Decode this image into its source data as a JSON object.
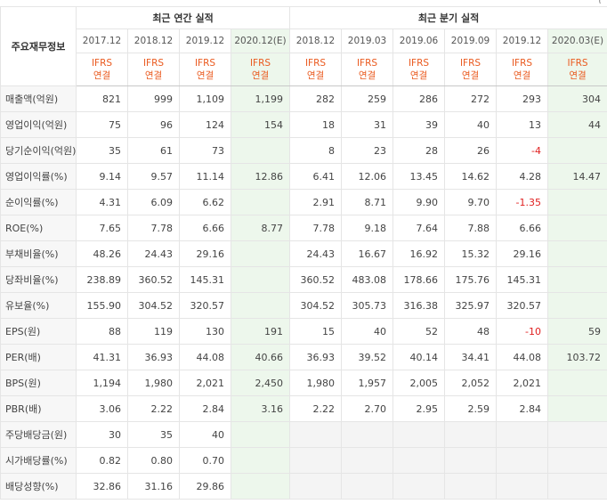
{
  "top_fragment": "( ",
  "header": {
    "row_label": "주요재무정보",
    "annual_title": "최근 연간 실적",
    "quarter_title": "최근 분기 실적",
    "annual_periods": [
      {
        "period": "2017.12",
        "basis": [
          "IFRS",
          "연결"
        ]
      },
      {
        "period": "2018.12",
        "basis": [
          "IFRS",
          "연결"
        ]
      },
      {
        "period": "2019.12",
        "basis": [
          "IFRS",
          "연결"
        ]
      },
      {
        "period": "2020.12(E)",
        "basis": [
          "IFRS",
          "연결"
        ]
      }
    ],
    "quarter_periods": [
      {
        "period": "2018.12",
        "basis": [
          "IFRS",
          "연결"
        ]
      },
      {
        "period": "2019.03",
        "basis": [
          "IFRS",
          "연결"
        ]
      },
      {
        "period": "2019.06",
        "basis": [
          "IFRS",
          "연결"
        ]
      },
      {
        "period": "2019.09",
        "basis": [
          "IFRS",
          "연결"
        ]
      },
      {
        "period": "2019.12",
        "basis": [
          "IFRS",
          "연결"
        ]
      },
      {
        "period": "2020.03(E)",
        "basis": [
          "IFRS",
          "연결"
        ]
      }
    ]
  },
  "rows": [
    {
      "label": "매출액(억원)",
      "annual": [
        "821",
        "999",
        "1,109",
        "1,199"
      ],
      "quarter": [
        "282",
        "259",
        "286",
        "272",
        "293",
        "304"
      ],
      "group_start": true
    },
    {
      "label": "영업이익(억원)",
      "annual": [
        "75",
        "96",
        "124",
        "154"
      ],
      "quarter": [
        "18",
        "31",
        "39",
        "40",
        "13",
        "44"
      ]
    },
    {
      "label": "당기순이익(억원)",
      "annual": [
        "35",
        "61",
        "73",
        ""
      ],
      "quarter": [
        "8",
        "23",
        "28",
        "26",
        "-4",
        ""
      ]
    },
    {
      "label": "영업이익률(%)",
      "annual": [
        "9.14",
        "9.57",
        "11.14",
        "12.86"
      ],
      "quarter": [
        "6.41",
        "12.06",
        "13.45",
        "14.62",
        "4.28",
        "14.47"
      ],
      "group_start": true
    },
    {
      "label": "순이익률(%)",
      "annual": [
        "4.31",
        "6.09",
        "6.62",
        ""
      ],
      "quarter": [
        "2.91",
        "8.71",
        "9.90",
        "9.70",
        "-1.35",
        ""
      ]
    },
    {
      "label": "ROE(%)",
      "annual": [
        "7.65",
        "7.78",
        "6.66",
        "8.77"
      ],
      "quarter": [
        "7.78",
        "9.18",
        "7.64",
        "7.88",
        "6.66",
        ""
      ]
    },
    {
      "label": "부채비율(%)",
      "annual": [
        "48.26",
        "24.43",
        "29.16",
        ""
      ],
      "quarter": [
        "24.43",
        "16.67",
        "16.92",
        "15.32",
        "29.16",
        ""
      ],
      "group_start": true
    },
    {
      "label": "당좌비율(%)",
      "annual": [
        "238.89",
        "360.52",
        "145.31",
        ""
      ],
      "quarter": [
        "360.52",
        "483.08",
        "178.66",
        "175.76",
        "145.31",
        ""
      ]
    },
    {
      "label": "유보율(%)",
      "annual": [
        "155.90",
        "304.52",
        "320.57",
        ""
      ],
      "quarter": [
        "304.52",
        "305.73",
        "316.38",
        "325.97",
        "320.57",
        ""
      ]
    },
    {
      "label": "EPS(원)",
      "annual": [
        "88",
        "119",
        "130",
        "191"
      ],
      "quarter": [
        "15",
        "40",
        "52",
        "48",
        "-10",
        "59"
      ],
      "group_start": true
    },
    {
      "label": "PER(배)",
      "annual": [
        "41.31",
        "36.93",
        "44.08",
        "40.66"
      ],
      "quarter": [
        "36.93",
        "39.52",
        "40.14",
        "34.41",
        "44.08",
        "103.72"
      ]
    },
    {
      "label": "BPS(원)",
      "annual": [
        "1,194",
        "1,980",
        "2,021",
        "2,450"
      ],
      "quarter": [
        "1,980",
        "1,957",
        "2,005",
        "2,052",
        "2,021",
        ""
      ]
    },
    {
      "label": "PBR(배)",
      "annual": [
        "3.06",
        "2.22",
        "2.84",
        "3.16"
      ],
      "quarter": [
        "2.22",
        "2.70",
        "2.95",
        "2.59",
        "2.84",
        ""
      ]
    },
    {
      "label": "주당배당금(원)",
      "annual": [
        "30",
        "35",
        "40",
        ""
      ],
      "quarter": [
        "",
        "",
        "",
        "",
        "",
        ""
      ],
      "group_start": true,
      "quarter_empty": true
    },
    {
      "label": "시가배당률(%)",
      "annual": [
        "0.82",
        "0.80",
        "0.70",
        ""
      ],
      "quarter": [
        "",
        "",
        "",
        "",
        "",
        ""
      ],
      "quarter_empty": true
    },
    {
      "label": "배당성향(%)",
      "annual": [
        "32.86",
        "31.16",
        "29.86",
        ""
      ],
      "quarter": [
        "",
        "",
        "",
        "",
        "",
        ""
      ],
      "quarter_empty": true
    }
  ]
}
